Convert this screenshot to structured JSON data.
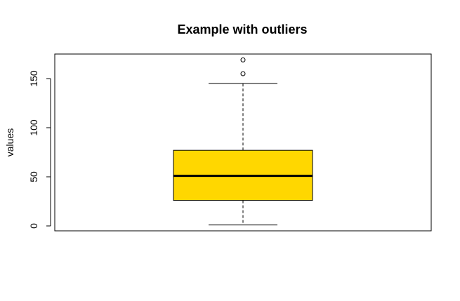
{
  "chart_data": {
    "type": "boxplot",
    "title": "Example with outliers",
    "xlabel": "",
    "ylabel": "values",
    "ylim": [
      -5,
      175
    ],
    "yticks": [
      0,
      50,
      100,
      150
    ],
    "y_tick_labels": [
      "0",
      "50",
      "100",
      "150"
    ],
    "grid": false,
    "legend": "none",
    "boxes": [
      {
        "min": 1,
        "q1": 26,
        "median": 51,
        "q3": 77,
        "max": 145,
        "outliers": [
          155,
          169
        ]
      }
    ],
    "colors": {
      "box_fill": "#ffd700",
      "stroke": "#000000"
    }
  }
}
